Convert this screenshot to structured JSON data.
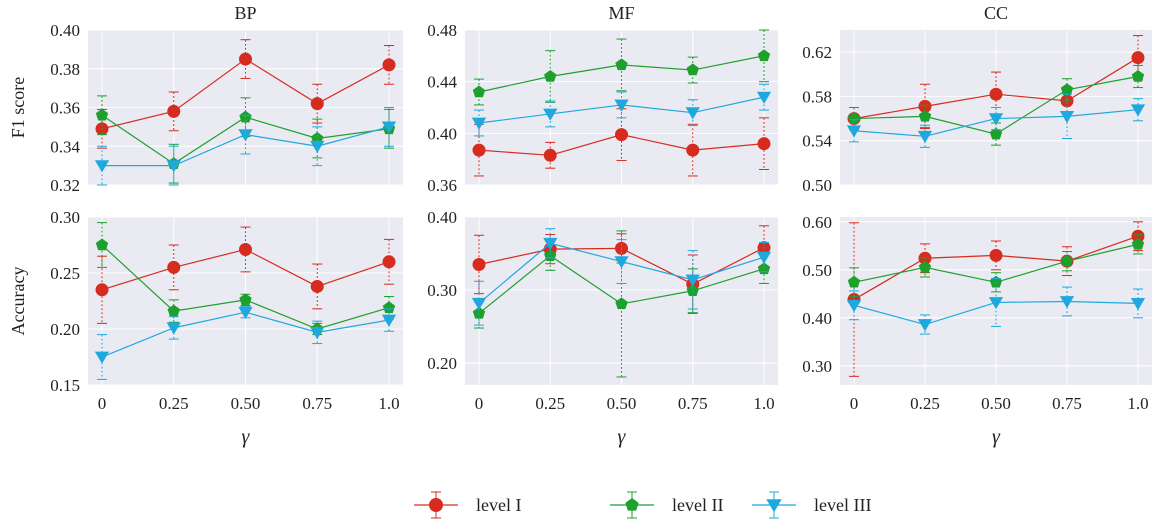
{
  "chart_data": {
    "type": "line",
    "xlabel": "γ",
    "x": [
      0,
      0.25,
      0.5,
      0.75,
      1.0
    ],
    "xtick_labels": [
      "0",
      "0.25",
      "0.50",
      "0.75",
      "1.0"
    ],
    "grid": true,
    "legend_position": "bottom-center",
    "legend": [
      {
        "name": "level I",
        "color": "#d62c1f",
        "marker": "circle"
      },
      {
        "name": "level II",
        "color": "#1ea02c",
        "marker": "pentagon"
      },
      {
        "name": "level III",
        "color": "#1fa8de",
        "marker": "triangle-down"
      }
    ],
    "rows": [
      {
        "ylabel": "F1 score"
      },
      {
        "ylabel": "Accuracy"
      }
    ],
    "panels": [
      {
        "row": 0,
        "col": 0,
        "title": "BP",
        "ylabel": "F1 score",
        "ylim": [
          0.32,
          0.4
        ],
        "yticks": [
          0.32,
          0.34,
          0.36,
          0.38,
          0.4
        ],
        "ytick_labels": [
          "0.32",
          "0.34",
          "0.36",
          "0.38",
          "0.40"
        ],
        "series": [
          {
            "name": "level I",
            "values": [
              0.349,
              0.358,
              0.385,
              0.362,
              0.382
            ],
            "err": [
              0.01,
              0.01,
              0.01,
              0.01,
              0.01
            ]
          },
          {
            "name": "level II",
            "values": [
              0.356,
              0.331,
              0.355,
              0.344,
              0.349
            ],
            "err": [
              0.01,
              0.01,
              0.01,
              0.01,
              0.01
            ]
          },
          {
            "name": "level III",
            "values": [
              0.33,
              0.33,
              0.346,
              0.34,
              0.35
            ],
            "err": [
              0.01,
              0.01,
              0.01,
              0.01,
              0.01
            ]
          }
        ]
      },
      {
        "row": 0,
        "col": 1,
        "title": "MF",
        "ylabel": "",
        "ylim": [
          0.36,
          0.48
        ],
        "yticks": [
          0.36,
          0.4,
          0.44,
          0.48
        ],
        "ytick_labels": [
          "0.36",
          "0.40",
          "0.44",
          "0.48"
        ],
        "series": [
          {
            "name": "level I",
            "values": [
              0.387,
              0.383,
              0.399,
              0.387,
              0.392
            ],
            "err": [
              0.02,
              0.01,
              0.02,
              0.02,
              0.02
            ]
          },
          {
            "name": "level II",
            "values": [
              0.432,
              0.444,
              0.453,
              0.449,
              0.46
            ],
            "err": [
              0.01,
              0.02,
              0.02,
              0.01,
              0.02
            ]
          },
          {
            "name": "level III",
            "values": [
              0.408,
              0.415,
              0.422,
              0.416,
              0.428
            ],
            "err": [
              0.01,
              0.01,
              0.01,
              0.01,
              0.01
            ]
          }
        ]
      },
      {
        "row": 0,
        "col": 2,
        "title": "CC",
        "ylabel": "",
        "ylim": [
          0.5,
          0.64
        ],
        "yticks": [
          0.5,
          0.54,
          0.58,
          0.62
        ],
        "ytick_labels": [
          "0.50",
          "0.54",
          "0.58",
          "0.62"
        ],
        "series": [
          {
            "name": "level I",
            "values": [
              0.56,
              0.571,
              0.582,
              0.576,
              0.615
            ],
            "err": [
              0.01,
              0.02,
              0.02,
              0.01,
              0.02
            ]
          },
          {
            "name": "level II",
            "values": [
              0.56,
              0.562,
              0.546,
              0.586,
              0.598
            ],
            "err": [
              0.01,
              0.01,
              0.01,
              0.01,
              0.01
            ]
          },
          {
            "name": "level III",
            "values": [
              0.549,
              0.544,
              0.56,
              0.562,
              0.568
            ],
            "err": [
              0.01,
              0.01,
              0.01,
              0.02,
              0.01
            ]
          }
        ]
      },
      {
        "row": 1,
        "col": 0,
        "title": "",
        "ylabel": "Accuracy",
        "ylim": [
          0.15,
          0.3
        ],
        "yticks": [
          0.15,
          0.2,
          0.25,
          0.3
        ],
        "ytick_labels": [
          "0.15",
          "0.20",
          "0.25",
          "0.30"
        ],
        "series": [
          {
            "name": "level I",
            "values": [
              0.235,
              0.255,
              0.271,
              0.238,
              0.26
            ],
            "err": [
              0.03,
              0.02,
              0.02,
              0.02,
              0.02
            ]
          },
          {
            "name": "level II",
            "values": [
              0.275,
              0.216,
              0.226,
              0.2,
              0.219
            ],
            "err": [
              0.02,
              0.01,
              0.005,
              0.005,
              0.01
            ]
          },
          {
            "name": "level III",
            "values": [
              0.175,
              0.201,
              0.215,
              0.197,
              0.208
            ],
            "err": [
              0.02,
              0.01,
              0.005,
              0.01,
              0.01
            ]
          }
        ]
      },
      {
        "row": 1,
        "col": 1,
        "title": "",
        "ylabel": "",
        "ylim": [
          0.17,
          0.4
        ],
        "yticks": [
          0.2,
          0.3,
          0.4
        ],
        "ytick_labels": [
          "0.20",
          "0.30",
          "0.40"
        ],
        "series": [
          {
            "name": "level I",
            "values": [
              0.335,
              0.356,
              0.357,
              0.308,
              0.358
            ],
            "err": [
              0.04,
              0.02,
              0.02,
              0.04,
              0.03
            ]
          },
          {
            "name": "level II",
            "values": [
              0.268,
              0.347,
              0.281,
              0.299,
              0.329
            ],
            "err": [
              0.02,
              0.02,
              0.1,
              0.03,
              0.02
            ]
          },
          {
            "name": "level III",
            "values": [
              0.282,
              0.364,
              0.339,
              0.314,
              0.345
            ],
            "err": [
              0.03,
              0.02,
              0.03,
              0.04,
              0.02
            ]
          }
        ]
      },
      {
        "row": 1,
        "col": 2,
        "title": "",
        "ylabel": "",
        "ylim": [
          0.26,
          0.61
        ],
        "yticks": [
          0.3,
          0.4,
          0.5,
          0.6
        ],
        "ytick_labels": [
          "0.30",
          "0.40",
          "0.50",
          "0.60"
        ],
        "series": [
          {
            "name": "level I",
            "values": [
              0.438,
              0.524,
              0.53,
              0.518,
              0.57
            ],
            "err": [
              0.16,
              0.03,
              0.03,
              0.03,
              0.03
            ]
          },
          {
            "name": "level II",
            "values": [
              0.474,
              0.505,
              0.474,
              0.518,
              0.553
            ],
            "err": [
              0.03,
              0.02,
              0.02,
              0.02,
              0.02
            ]
          },
          {
            "name": "level III",
            "values": [
              0.426,
              0.386,
              0.432,
              0.434,
              0.43
            ],
            "err": [
              0.03,
              0.02,
              0.05,
              0.03,
              0.03
            ]
          }
        ]
      }
    ]
  }
}
